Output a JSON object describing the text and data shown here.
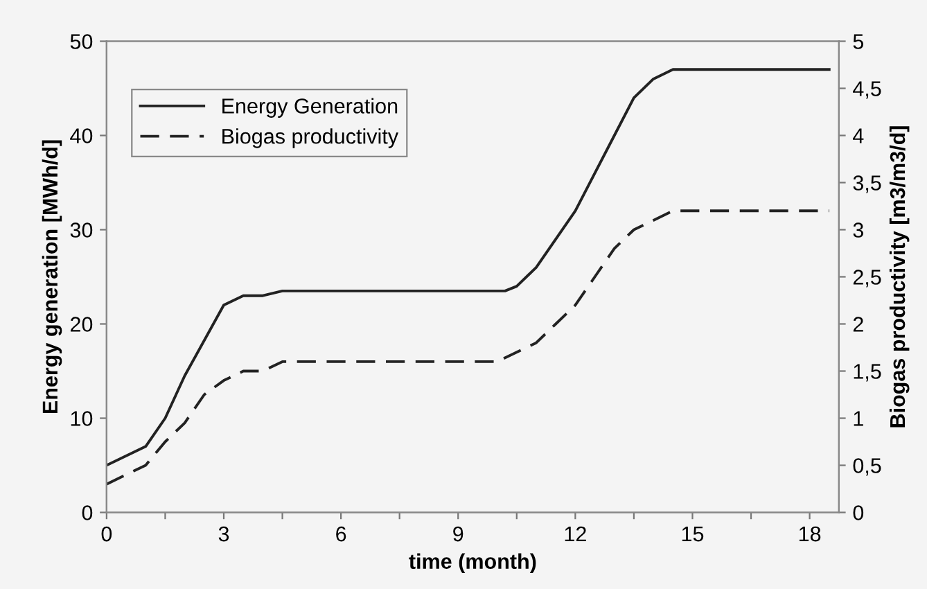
{
  "chart_data": {
    "type": "line",
    "xlabel": "time (month)",
    "ylabel": "Energy generation [MWh/d]",
    "y2label": "Biogas productivity [m3/m3/d]",
    "xlim": [
      0,
      18.75
    ],
    "xticks": [
      0,
      {
        "value": 1.5,
        "label": null
      },
      3,
      {
        "value": 4.5,
        "label": null
      },
      6,
      {
        "value": 7.5,
        "label": null
      },
      9,
      {
        "value": 10.5,
        "label": null
      },
      12,
      {
        "value": 13.5,
        "label": null
      },
      15,
      {
        "value": 16.5,
        "label": null
      },
      18
    ],
    "ylim": [
      0,
      50
    ],
    "yticks": [
      0,
      10,
      20,
      30,
      40,
      50
    ],
    "y2lim": [
      0,
      5
    ],
    "y2ticks": [
      0,
      {
        "value": 0.5,
        "label": "0,5"
      },
      1,
      {
        "value": 1.5,
        "label": "1,5"
      },
      2,
      {
        "value": 2.5,
        "label": "2,5"
      },
      3,
      {
        "value": 3.5,
        "label": "3,5"
      },
      4,
      {
        "value": 4.5,
        "label": "4,5"
      },
      5
    ],
    "grid": false,
    "legend": "top left",
    "marker": "none",
    "series": [
      {
        "name": "Energy Generation",
        "color": "#222222",
        "line_style": "solid",
        "x": [
          0,
          1,
          1.5,
          2,
          3,
          3.5,
          4,
          4.5,
          10.2,
          10.5,
          11,
          12,
          13,
          13.5,
          14,
          14.5,
          18.5
        ],
        "values": [
          5,
          7,
          10,
          14.5,
          22,
          23,
          23,
          23.5,
          23.5,
          24,
          26,
          32,
          40,
          44,
          46,
          47,
          47
        ]
      },
      {
        "name": "Biogas productivity",
        "color": "#222222",
        "line_style": "dashed",
        "axis": "y2",
        "x": [
          0,
          1,
          1.5,
          2,
          2.5,
          3,
          3.5,
          4,
          4.5,
          10,
          10.5,
          11,
          11.5,
          12,
          12.5,
          13,
          13.5,
          14,
          14.5,
          18.5
        ],
        "values": [
          0.3,
          0.5,
          0.75,
          0.95,
          1.25,
          1.4,
          1.5,
          1.5,
          1.6,
          1.6,
          1.7,
          1.8,
          2.0,
          2.2,
          2.5,
          2.8,
          3.0,
          3.1,
          3.2,
          3.2
        ]
      }
    ]
  }
}
